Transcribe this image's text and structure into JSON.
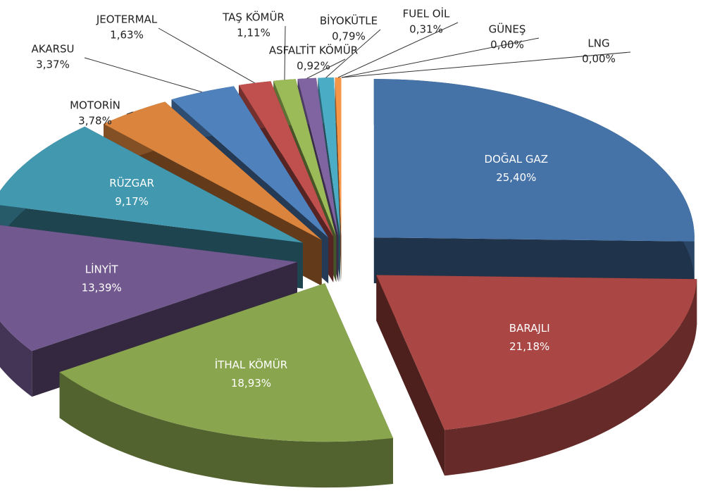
{
  "chart_data": {
    "type": "pie3d",
    "categories": [
      "DOĞAL GAZ",
      "BARAJLI",
      "İTHAL KÖMÜR",
      "LİNYİT",
      "RÜZGAR",
      "MOTORİN",
      "AKARSU",
      "JEOTERMAL",
      "TAŞ KÖMÜR",
      "ASFALTİT KÖMÜR",
      "BİYOKÜTLE",
      "FUEL OİL",
      "GÜNEŞ",
      "LNG"
    ],
    "values": [
      25.4,
      21.18,
      18.93,
      13.39,
      9.17,
      3.78,
      3.37,
      1.63,
      1.11,
      0.92,
      0.79,
      0.31,
      0.0,
      0.0
    ],
    "value_labels": [
      "25,40%",
      "21,18%",
      "18,93%",
      "13,39%",
      "9,17%",
      "3,78%",
      "3,37%",
      "1,63%",
      "1,11%",
      "0,92%",
      "0,79%",
      "0,31%",
      "0,00%",
      "0,00%"
    ],
    "colors": [
      "#4572a7",
      "#aa4643",
      "#89a54e",
      "#71588f",
      "#4198af",
      "#db843d",
      "#4f81bd",
      "#c0504d",
      "#9bbb59",
      "#8064a2",
      "#4bacc6",
      "#f79646",
      "#2c4d75",
      "#772c2a"
    ]
  }
}
